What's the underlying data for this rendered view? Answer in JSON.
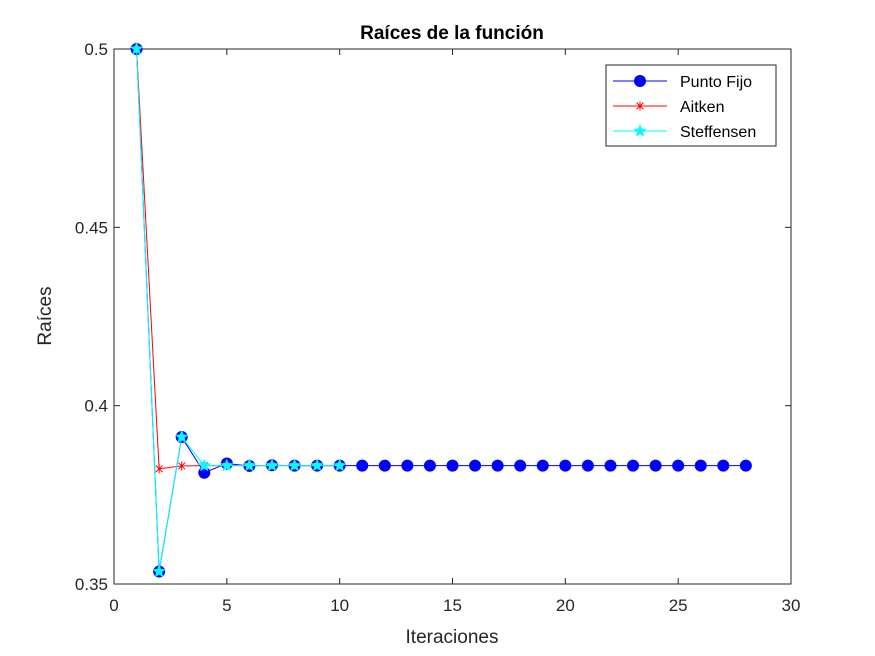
{
  "chart_data": {
    "type": "line",
    "title": "Raíces de la función",
    "xlabel": "Iteraciones",
    "ylabel": "Raíces",
    "xlim": [
      0,
      30
    ],
    "ylim": [
      0.35,
      0.5
    ],
    "xticks": [
      0,
      5,
      10,
      15,
      20,
      25,
      30
    ],
    "yticks": [
      0.35,
      0.4,
      0.45,
      0.5
    ],
    "xtick_labels": [
      "0",
      "5",
      "10",
      "15",
      "20",
      "25",
      "30"
    ],
    "ytick_labels": [
      "0.35",
      "0.4",
      "0.45",
      "0.5"
    ],
    "grid": false,
    "legend_position": "top-right",
    "series": [
      {
        "name": "Punto Fijo",
        "color": "#0000ff",
        "marker": "circle",
        "x": [
          1,
          2,
          3,
          4,
          5,
          6,
          7,
          8,
          9,
          10,
          11,
          12,
          13,
          14,
          15,
          16,
          17,
          18,
          19,
          20,
          21,
          22,
          23,
          24,
          25,
          26,
          27,
          28
        ],
        "y": [
          0.5,
          0.3535,
          0.3912,
          0.3812,
          0.3838,
          0.3831,
          0.3833,
          0.3832,
          0.3832,
          0.3832,
          0.3832,
          0.3832,
          0.3832,
          0.3832,
          0.3832,
          0.3832,
          0.3832,
          0.3832,
          0.3832,
          0.3832,
          0.3832,
          0.3832,
          0.3832,
          0.3832,
          0.3832,
          0.3832,
          0.3832,
          0.3832
        ]
      },
      {
        "name": "Aitken",
        "color": "#ff0000",
        "marker": "asterisk",
        "x": [
          1,
          2,
          3,
          4,
          5,
          6,
          7,
          8,
          9,
          10
        ],
        "y": [
          0.5,
          0.3823,
          0.3831,
          0.3832,
          0.3832,
          0.3832,
          0.3832,
          0.3832,
          0.3832,
          0.3832
        ]
      },
      {
        "name": "Steffensen",
        "color": "#00ffff",
        "marker": "star",
        "x": [
          1,
          2,
          3,
          4,
          5,
          6,
          7,
          8,
          9,
          10
        ],
        "y": [
          0.5,
          0.3535,
          0.3912,
          0.3832,
          0.3832,
          0.3832,
          0.3832,
          0.3832,
          0.3832,
          0.3832
        ]
      }
    ]
  }
}
